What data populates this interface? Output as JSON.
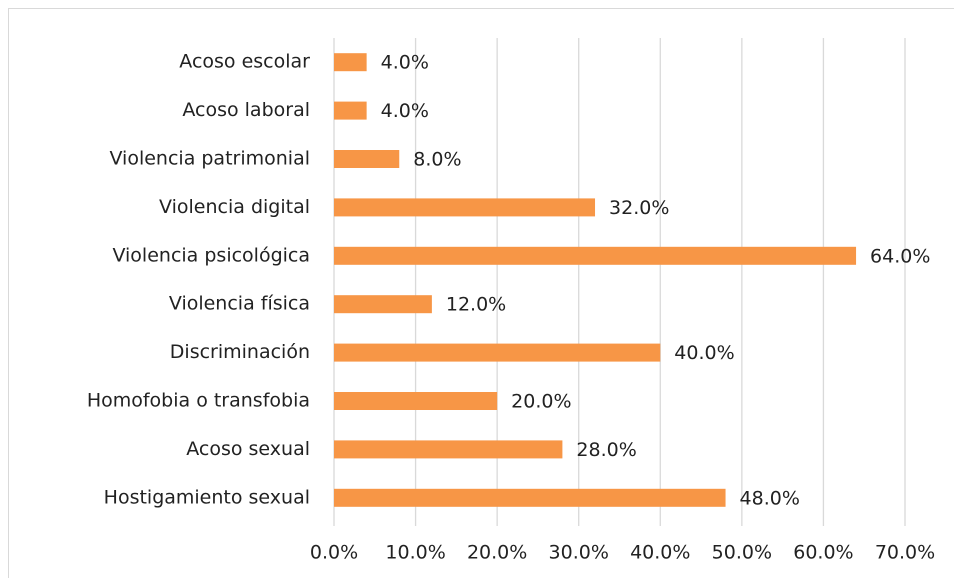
{
  "chart_data": {
    "type": "bar",
    "orientation": "horizontal",
    "categories": [
      "Acoso escolar",
      "Acoso laboral",
      "Violencia patrimonial",
      "Violencia digital",
      "Violencia psicológica",
      "Violencia física",
      "Discriminación",
      "Homofobia o transfobia",
      "Acoso sexual",
      "Hostigamiento sexual"
    ],
    "values": [
      4,
      4,
      8,
      32,
      64,
      12,
      40,
      20,
      28,
      48
    ],
    "value_labels": [
      "4.0%",
      "4.0%",
      "8.0%",
      "32.0%",
      "64.0%",
      "12.0%",
      "40.0%",
      "20.0%",
      "28.0%",
      "48.0%"
    ],
    "color": "#f79646",
    "xlim": [
      0,
      70
    ],
    "xticks": [
      {
        "value": 0,
        "label": "0.0%"
      },
      {
        "value": 10,
        "label": "10.0%"
      },
      {
        "value": 20,
        "label": "20.0%"
      },
      {
        "value": 30,
        "label": "30.0%"
      },
      {
        "value": 40,
        "label": "40.0%"
      },
      {
        "value": 50,
        "label": "50.0%"
      },
      {
        "value": 60,
        "label": "60.0%"
      },
      {
        "value": 70,
        "label": "70.0%"
      }
    ],
    "grid": true
  }
}
